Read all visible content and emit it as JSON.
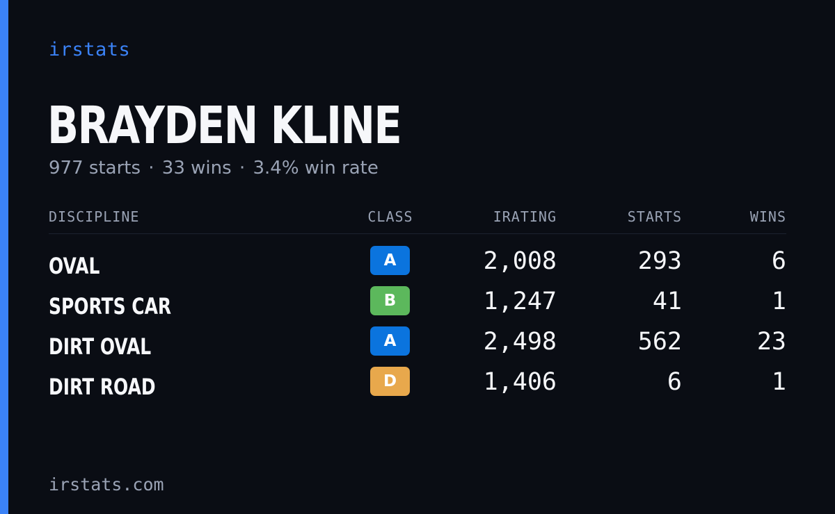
{
  "brand": "irstats",
  "driver": {
    "name": "BRAYDEN KLINE",
    "starts_text": "977 starts",
    "wins_text": "33 wins",
    "win_rate_text": "3.4% win rate",
    "separator": "·"
  },
  "table": {
    "headers": {
      "discipline": "DISCIPLINE",
      "class": "CLASS",
      "irating": "IRATING",
      "starts": "STARTS",
      "wins": "WINS"
    },
    "rows": [
      {
        "discipline": "OVAL",
        "class": "A",
        "class_color": "#0b74de",
        "irating": "2,008",
        "starts": "293",
        "wins": "6"
      },
      {
        "discipline": "SPORTS CAR",
        "class": "B",
        "class_color": "#5cb85c",
        "irating": "1,247",
        "starts": "41",
        "wins": "1"
      },
      {
        "discipline": "DIRT OVAL",
        "class": "A",
        "class_color": "#0b74de",
        "irating": "2,498",
        "starts": "562",
        "wins": "23"
      },
      {
        "discipline": "DIRT ROAD",
        "class": "D",
        "class_color": "#e8a84c",
        "irating": "1,406",
        "starts": "6",
        "wins": "1"
      }
    ]
  },
  "colors": {
    "background": "#0a0d14",
    "accent": "#3b82f6",
    "muted_text": "#9aa3b5"
  },
  "footer": "irstats.com"
}
